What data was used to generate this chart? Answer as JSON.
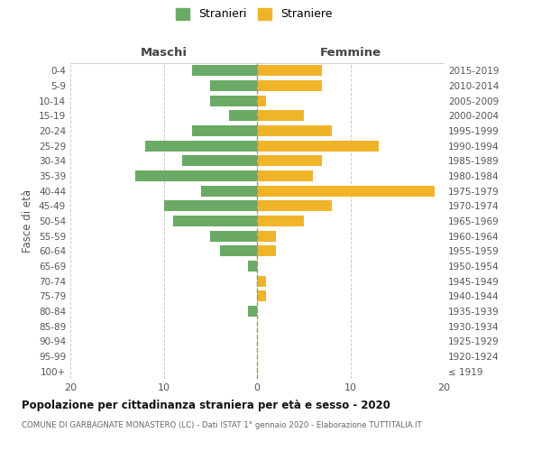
{
  "age_groups": [
    "100+",
    "95-99",
    "90-94",
    "85-89",
    "80-84",
    "75-79",
    "70-74",
    "65-69",
    "60-64",
    "55-59",
    "50-54",
    "45-49",
    "40-44",
    "35-39",
    "30-34",
    "25-29",
    "20-24",
    "15-19",
    "10-14",
    "5-9",
    "0-4"
  ],
  "birth_years": [
    "≤ 1919",
    "1920-1924",
    "1925-1929",
    "1930-1934",
    "1935-1939",
    "1940-1944",
    "1945-1949",
    "1950-1954",
    "1955-1959",
    "1960-1964",
    "1965-1969",
    "1970-1974",
    "1975-1979",
    "1980-1984",
    "1985-1989",
    "1990-1994",
    "1995-1999",
    "2000-2004",
    "2005-2009",
    "2010-2014",
    "2015-2019"
  ],
  "maschi": [
    0,
    0,
    0,
    0,
    1,
    0,
    0,
    1,
    4,
    5,
    9,
    10,
    6,
    13,
    8,
    12,
    7,
    3,
    5,
    5,
    7
  ],
  "femmine": [
    0,
    0,
    0,
    0,
    0,
    1,
    1,
    0,
    2,
    2,
    5,
    8,
    19,
    6,
    7,
    13,
    8,
    5,
    1,
    7,
    7
  ],
  "male_color": "#6aaa64",
  "female_color": "#f0b429",
  "grid_color": "#cccccc",
  "title": "Popolazione per cittadinanza straniera per età e sesso - 2020",
  "subtitle": "COMUNE DI GARBAGNATE MONASTERO (LC) - Dati ISTAT 1° gennaio 2020 - Elaborazione TUTTITALIA.IT",
  "header_left": "Maschi",
  "header_right": "Femmine",
  "ylabel_left": "Fasce di età",
  "legend_male": "Stranieri",
  "legend_female": "Straniere",
  "xlim": 20,
  "background_color": "#ffffff",
  "dashed_line_color": "#999966",
  "text_color": "#555555",
  "title_color": "#111111",
  "subtitle_color": "#666666"
}
